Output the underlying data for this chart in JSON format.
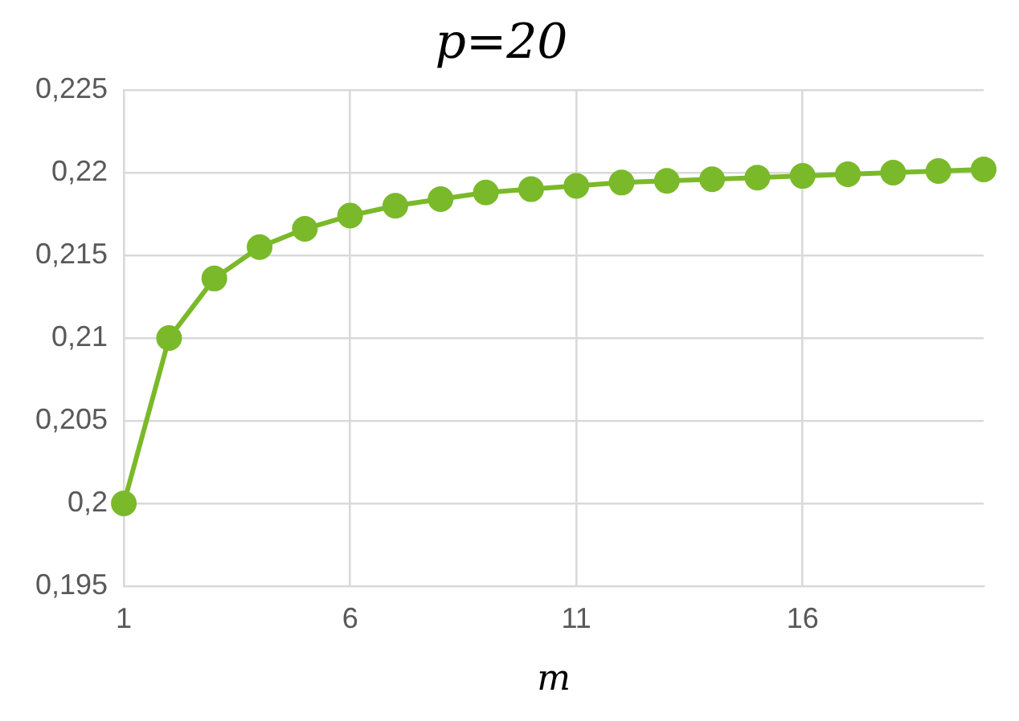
{
  "chart_data": {
    "type": "line",
    "title": "p=20",
    "xlabel": "m",
    "x": [
      1,
      2,
      3,
      4,
      5,
      6,
      7,
      8,
      9,
      10,
      11,
      12,
      13,
      14,
      15,
      16,
      17,
      18,
      19,
      20
    ],
    "series": [
      {
        "color": "#7ab929",
        "values": [
          0.2,
          0.21,
          0.2136,
          0.2155,
          0.2166,
          0.2174,
          0.218,
          0.2184,
          0.2188,
          0.219,
          0.2192,
          0.2194,
          0.2195,
          0.2196,
          0.2197,
          0.2198,
          0.2199,
          0.22,
          0.2201,
          0.2202
        ]
      }
    ],
    "xlim": [
      1,
      20
    ],
    "xticks": [
      1,
      6,
      11,
      16
    ],
    "ylim": [
      0.195,
      0.225
    ],
    "yticks": [
      {
        "value": 0.195,
        "label": "0,195"
      },
      {
        "value": 0.2,
        "label": "0,2"
      },
      {
        "value": 0.205,
        "label": "0,205"
      },
      {
        "value": 0.21,
        "label": "0,21"
      },
      {
        "value": 0.215,
        "label": "0,215"
      },
      {
        "value": 0.22,
        "label": "0,22"
      },
      {
        "value": 0.225,
        "label": "0,225"
      }
    ],
    "grid": true,
    "legend": false,
    "marker": "circle",
    "line_style": "solid"
  }
}
